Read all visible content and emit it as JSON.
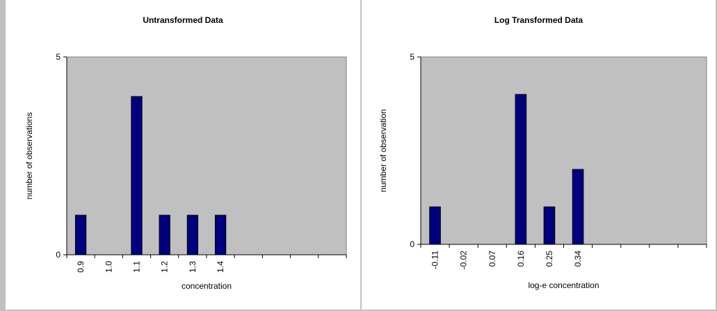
{
  "chart_data": [
    {
      "type": "bar",
      "title": "Untransformed Data",
      "xlabel": "concentration",
      "ylabel": "number of observations",
      "categories": [
        "0.9",
        "1.0",
        "1.1",
        "1.2",
        "1.3",
        "1.4",
        "",
        "",
        "",
        ""
      ],
      "values": [
        1,
        0,
        4,
        1,
        1,
        1,
        0,
        0,
        0,
        0
      ],
      "ylim": [
        0,
        5
      ],
      "yticks": [
        "0",
        "5"
      ],
      "grid": false,
      "bar_color": "#000080",
      "plot_background": "#c0c0c0"
    },
    {
      "type": "bar",
      "title": "Log Transformed Data",
      "xlabel": "log-e concentration",
      "ylabel": "number of observation",
      "categories": [
        "-0.11",
        "-0.02",
        "0.07",
        "0.16",
        "0.25",
        "0.34",
        "",
        "",
        "",
        ""
      ],
      "values": [
        1,
        0,
        0,
        4,
        1,
        2,
        0,
        0,
        0,
        0
      ],
      "ylim": [
        0,
        5
      ],
      "yticks": [
        "0",
        "5"
      ],
      "grid": false,
      "bar_color": "#000080",
      "plot_background": "#c0c0c0"
    }
  ]
}
